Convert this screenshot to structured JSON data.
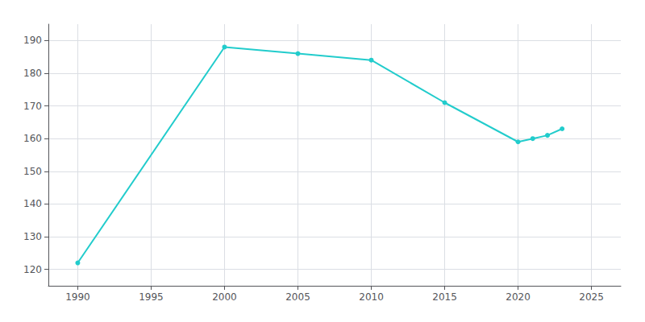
{
  "chart_data": {
    "type": "line",
    "x": [
      1990,
      2000,
      2005,
      2010,
      2015,
      2020,
      2021,
      2022,
      2023
    ],
    "values": [
      122,
      188,
      186,
      184,
      171,
      159,
      160,
      161,
      163
    ],
    "color": "#22CCCC",
    "marker": "circle",
    "xlim": [
      1988,
      2027
    ],
    "xticks": [
      1990,
      1995,
      2000,
      2005,
      2010,
      2015,
      2020,
      2025
    ],
    "ylim": [
      115,
      195
    ],
    "yticks": [
      120,
      130,
      140,
      150,
      160,
      170,
      180,
      190
    ],
    "grid": true
  }
}
